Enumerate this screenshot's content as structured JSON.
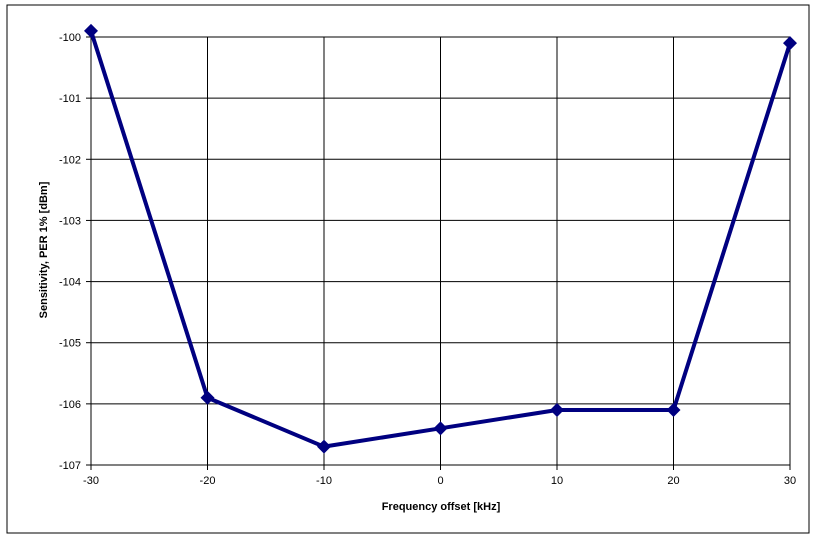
{
  "chart_data": {
    "type": "line",
    "title": "",
    "xlabel": "Frequency offset [kHz]",
    "ylabel": "Sensitivity, PER 1% [dBm]",
    "xlim": [
      -30,
      30
    ],
    "ylim": [
      -107,
      -100
    ],
    "x_ticks": [
      -30,
      -20,
      -10,
      0,
      10,
      20,
      30
    ],
    "y_ticks": [
      -100,
      -101,
      -102,
      -103,
      -104,
      -105,
      -106,
      -107
    ],
    "x_tick_labels": [
      "-30",
      "-20",
      "-10",
      "0",
      "10",
      "20",
      "30"
    ],
    "y_tick_labels": [
      "-100",
      "-101",
      "-102",
      "-103",
      "-104",
      "-105",
      "-106",
      "-107"
    ],
    "grid": true,
    "legend": "none",
    "series": [
      {
        "color": "#000080",
        "marker": "diamond",
        "x": [
          -30,
          -20,
          -10,
          0,
          10,
          20,
          30
        ],
        "y": [
          -99.9,
          -105.9,
          -106.7,
          -106.4,
          -106.1,
          -106.1,
          -100.1
        ]
      }
    ]
  }
}
